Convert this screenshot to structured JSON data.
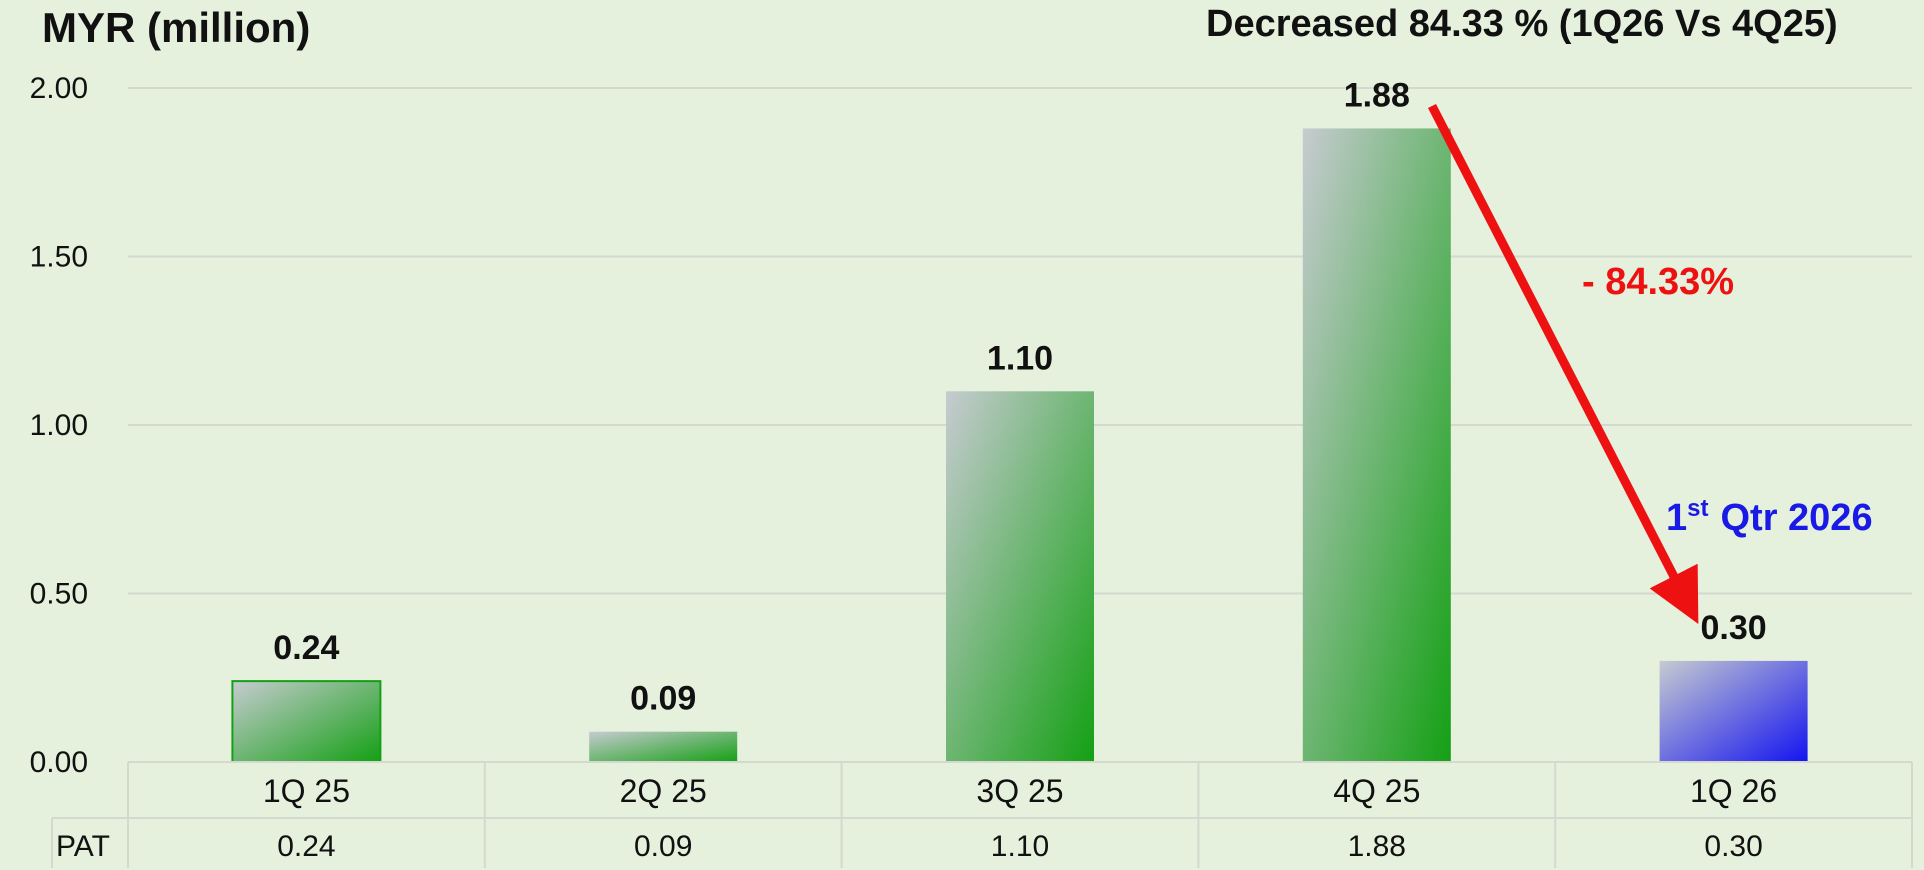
{
  "chart_data": {
    "type": "bar",
    "unit_label": "MYR (million)",
    "headline": "Decreased 84.33 % (1Q26 Vs 4Q25)",
    "categories": [
      "1Q 25",
      "2Q 25",
      "3Q 25",
      "4Q 25",
      "1Q 26"
    ],
    "series": [
      {
        "name": "PAT",
        "values": [
          0.24,
          0.09,
          1.1,
          1.88,
          0.3
        ],
        "labels": [
          "0.24",
          "0.09",
          "1.10",
          "1.88",
          "0.30"
        ]
      }
    ],
    "ylim": [
      0,
      2.0
    ],
    "yticks": [
      "0.00",
      "0.50",
      "1.00",
      "1.50",
      "2.00"
    ],
    "grid": true,
    "change_annotation": "- 84.33%",
    "highlight_annotation": {
      "prefix": "1",
      "superscript": "st",
      "text": "Qtr 2026"
    },
    "colors": {
      "bar_green": "#14a014",
      "bar_blue": "#1414f0",
      "bar_light": "#c6cbd0",
      "arrow": "#ee1111",
      "highlight": "#1a1ae6"
    },
    "data_table": {
      "row_label": "PAT",
      "values": [
        "0.24",
        "0.09",
        "1.10",
        "1.88",
        "0.30"
      ]
    }
  }
}
